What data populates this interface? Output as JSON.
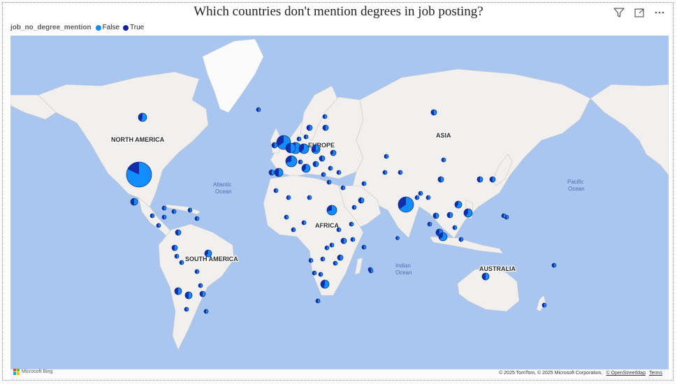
{
  "visual": {
    "title": "Which countries don't mention degrees in job posting?"
  },
  "header_icons": [
    "filter-icon",
    "focus-mode-icon",
    "more-options-icon"
  ],
  "legend": {
    "title": "job_no_degree_mention",
    "items": [
      {
        "label": "False",
        "color": "#118dff"
      },
      {
        "label": "True",
        "color": "#12239e"
      }
    ]
  },
  "map": {
    "region_labels": [
      "NORTH AMERICA",
      "EUROPE",
      "ASIA",
      "AFRICA",
      "SOUTH AMERICA",
      "AUSTRALIA"
    ],
    "ocean_labels": [
      {
        "line1": "Atlantic",
        "line2": "Ocean"
      },
      {
        "line1": "Pacific",
        "line2": "Ocean"
      },
      {
        "line1": "Indian",
        "line2": "Ocean"
      }
    ],
    "logo": "Microsoft Bing",
    "attribution": "© 2025 TomTom, © 2025 Microsoft Corporation,",
    "attribution_link": "© OpenStreetMap",
    "terms": "Terms"
  },
  "colors": {
    "false": "#118dff",
    "true": "#12239e",
    "ocean": "#a9c6f0",
    "land": "#f1f0ee"
  }
}
